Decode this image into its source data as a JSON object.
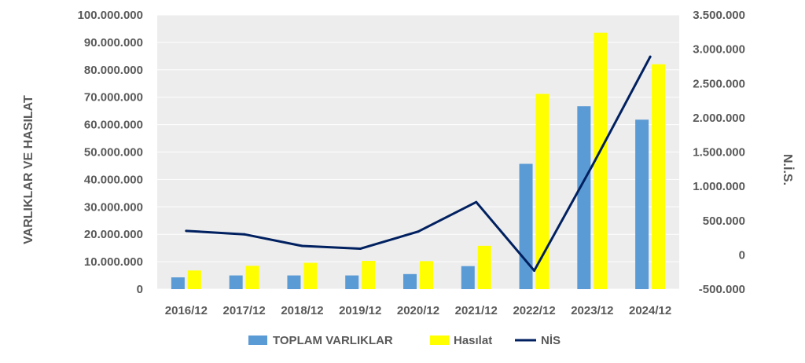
{
  "chart_data": {
    "type": "bar",
    "categories": [
      "2016/12",
      "2017/12",
      "2018/12",
      "2019/12",
      "2020/12",
      "2021/12",
      "2022/12",
      "2023/12",
      "2024/12"
    ],
    "series": [
      {
        "name": "TOPLAM VARLIKLAR",
        "type": "bar",
        "axis": "left",
        "color": "#5b9bd5",
        "values": [
          4300000,
          5000000,
          5000000,
          5000000,
          5500000,
          8400000,
          45700000,
          66700000,
          61800000
        ]
      },
      {
        "name": "Hasılat",
        "type": "bar",
        "axis": "left",
        "color": "#ffff00",
        "values": [
          6800000,
          8500000,
          9600000,
          10300000,
          10200000,
          15800000,
          71200000,
          93500000,
          82000000
        ]
      },
      {
        "name": "NİS",
        "type": "line",
        "axis": "right",
        "color": "#002060",
        "values": [
          350000,
          300000,
          130000,
          90000,
          340000,
          770000,
          -230000,
          1300000,
          2890000
        ]
      }
    ],
    "ylabel": "VARLIKLAR VE HASILAT",
    "y2label": "N.İ.S.",
    "ylim": [
      0,
      100000000
    ],
    "y2lim": [
      -500000,
      3500000
    ],
    "yticks": [
      "0",
      "10.000.000",
      "20.000.000",
      "30.000.000",
      "40.000.000",
      "50.000.000",
      "60.000.000",
      "70.000.000",
      "80.000.000",
      "90.000.000",
      "100.000.000"
    ],
    "y2ticks": [
      "-500.000",
      "0",
      "500.000",
      "1.000.000",
      "1.500.000",
      "2.000.000",
      "2.500.000",
      "3.000.000",
      "3.500.000"
    ],
    "plot_background": "#ededed",
    "legend_position": "bottom"
  }
}
